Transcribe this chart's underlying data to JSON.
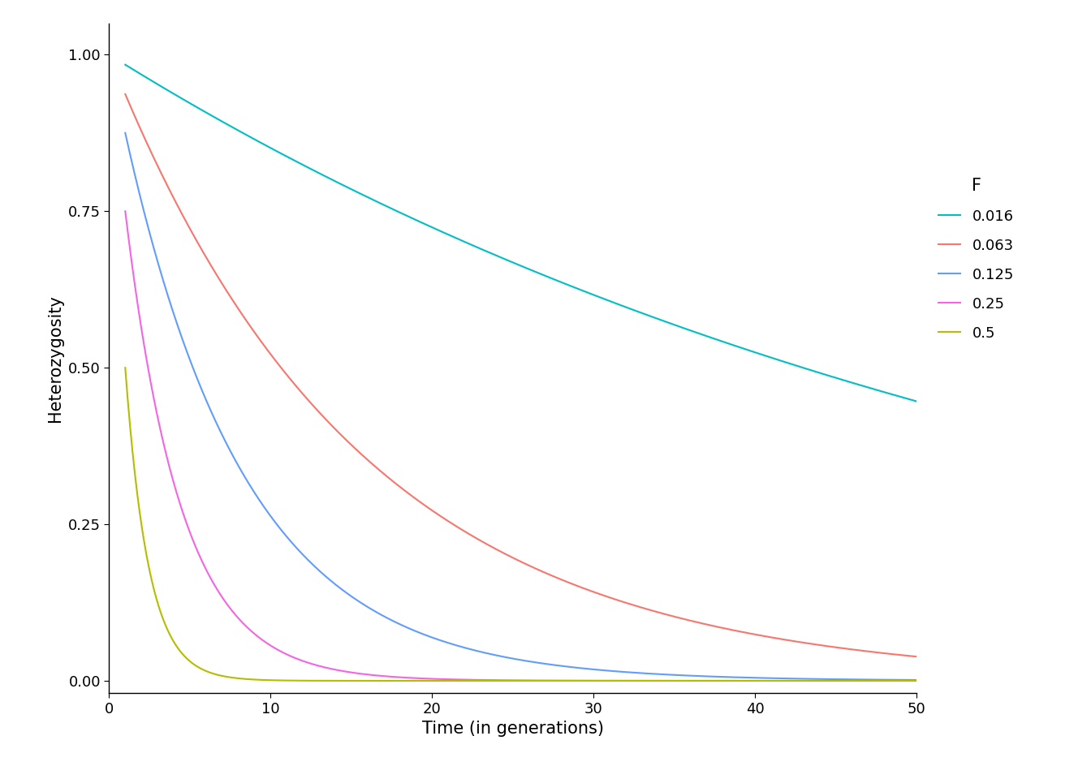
{
  "title": "",
  "xlabel": "Time (in generations)",
  "ylabel": "Heterozygosity",
  "legend_title": "F",
  "xlim": [
    0,
    50
  ],
  "ylim": [
    -0.02,
    1.05
  ],
  "x_ticks": [
    0,
    10,
    20,
    30,
    40,
    50
  ],
  "y_ticks": [
    0.0,
    0.25,
    0.5,
    0.75,
    1.0
  ],
  "series": [
    {
      "F": 0.016,
      "color": "#00BFC4",
      "label": "0.016"
    },
    {
      "F": 0.063,
      "color": "#F8766D",
      "label": "0.063"
    },
    {
      "F": 0.125,
      "color": "#7CAE00",
      "label": "0.125"
    },
    {
      "F": 0.25,
      "color": "#C77CFF",
      "label": "0.25"
    },
    {
      "F": 0.5,
      "color": "#7CAE00",
      "label": "0.5"
    }
  ],
  "background_color": "#FFFFFF",
  "line_width": 1.5,
  "font_size_axis_label": 15,
  "font_size_tick_label": 13,
  "font_size_legend_title": 15,
  "font_size_legend": 13
}
